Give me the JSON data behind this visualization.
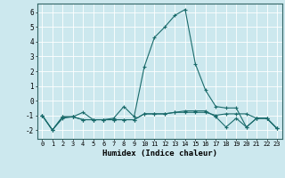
{
  "xlabel": "Humidex (Indice chaleur)",
  "background_color": "#cce8ee",
  "grid_color": "#b0d8e0",
  "line_color": "#1a6b6b",
  "xlim": [
    -0.5,
    23.5
  ],
  "ylim": [
    -2.6,
    6.6
  ],
  "xticks": [
    0,
    1,
    2,
    3,
    4,
    5,
    6,
    7,
    8,
    9,
    10,
    11,
    12,
    13,
    14,
    15,
    16,
    17,
    18,
    19,
    20,
    21,
    22,
    23
  ],
  "yticks": [
    -2,
    -1,
    0,
    1,
    2,
    3,
    4,
    5,
    6
  ],
  "series": [
    {
      "x": [
        0,
        1,
        2,
        3,
        4,
        5,
        6,
        7,
        8,
        9,
        10,
        11,
        12,
        13,
        14,
        15,
        16,
        17,
        18,
        19,
        20,
        21,
        22,
        23
      ],
      "y": [
        -1.0,
        -2.0,
        -1.2,
        -1.1,
        -0.8,
        -1.3,
        -1.3,
        -1.2,
        -0.4,
        -1.1,
        2.3,
        4.3,
        5.0,
        5.8,
        6.2,
        2.5,
        0.7,
        -0.4,
        -0.5,
        -0.5,
        -1.8,
        -1.2,
        -1.2,
        -1.9
      ]
    },
    {
      "x": [
        0,
        1,
        2,
        3,
        4,
        5,
        6,
        7,
        8,
        9,
        10,
        11,
        12,
        13,
        14,
        15,
        16,
        17,
        18,
        19,
        20,
        21,
        22,
        23
      ],
      "y": [
        -1.0,
        -2.0,
        -1.1,
        -1.1,
        -1.3,
        -1.3,
        -1.3,
        -1.3,
        -1.3,
        -1.3,
        -0.9,
        -0.9,
        -0.9,
        -0.8,
        -0.8,
        -0.8,
        -0.8,
        -1.0,
        -0.9,
        -0.9,
        -0.9,
        -1.2,
        -1.2,
        -1.9
      ]
    },
    {
      "x": [
        0,
        1,
        2,
        3,
        4,
        5,
        6,
        7,
        8,
        9,
        10,
        11,
        12,
        13,
        14,
        15,
        16,
        17,
        18,
        19,
        20,
        21,
        22,
        23
      ],
      "y": [
        -1.0,
        -2.0,
        -1.1,
        -1.1,
        -1.3,
        -1.3,
        -1.3,
        -1.3,
        -1.3,
        -1.3,
        -0.9,
        -0.9,
        -0.9,
        -0.8,
        -0.7,
        -0.7,
        -0.7,
        -1.1,
        -1.8,
        -1.2,
        -1.8,
        -1.2,
        -1.2,
        -1.9
      ]
    }
  ]
}
